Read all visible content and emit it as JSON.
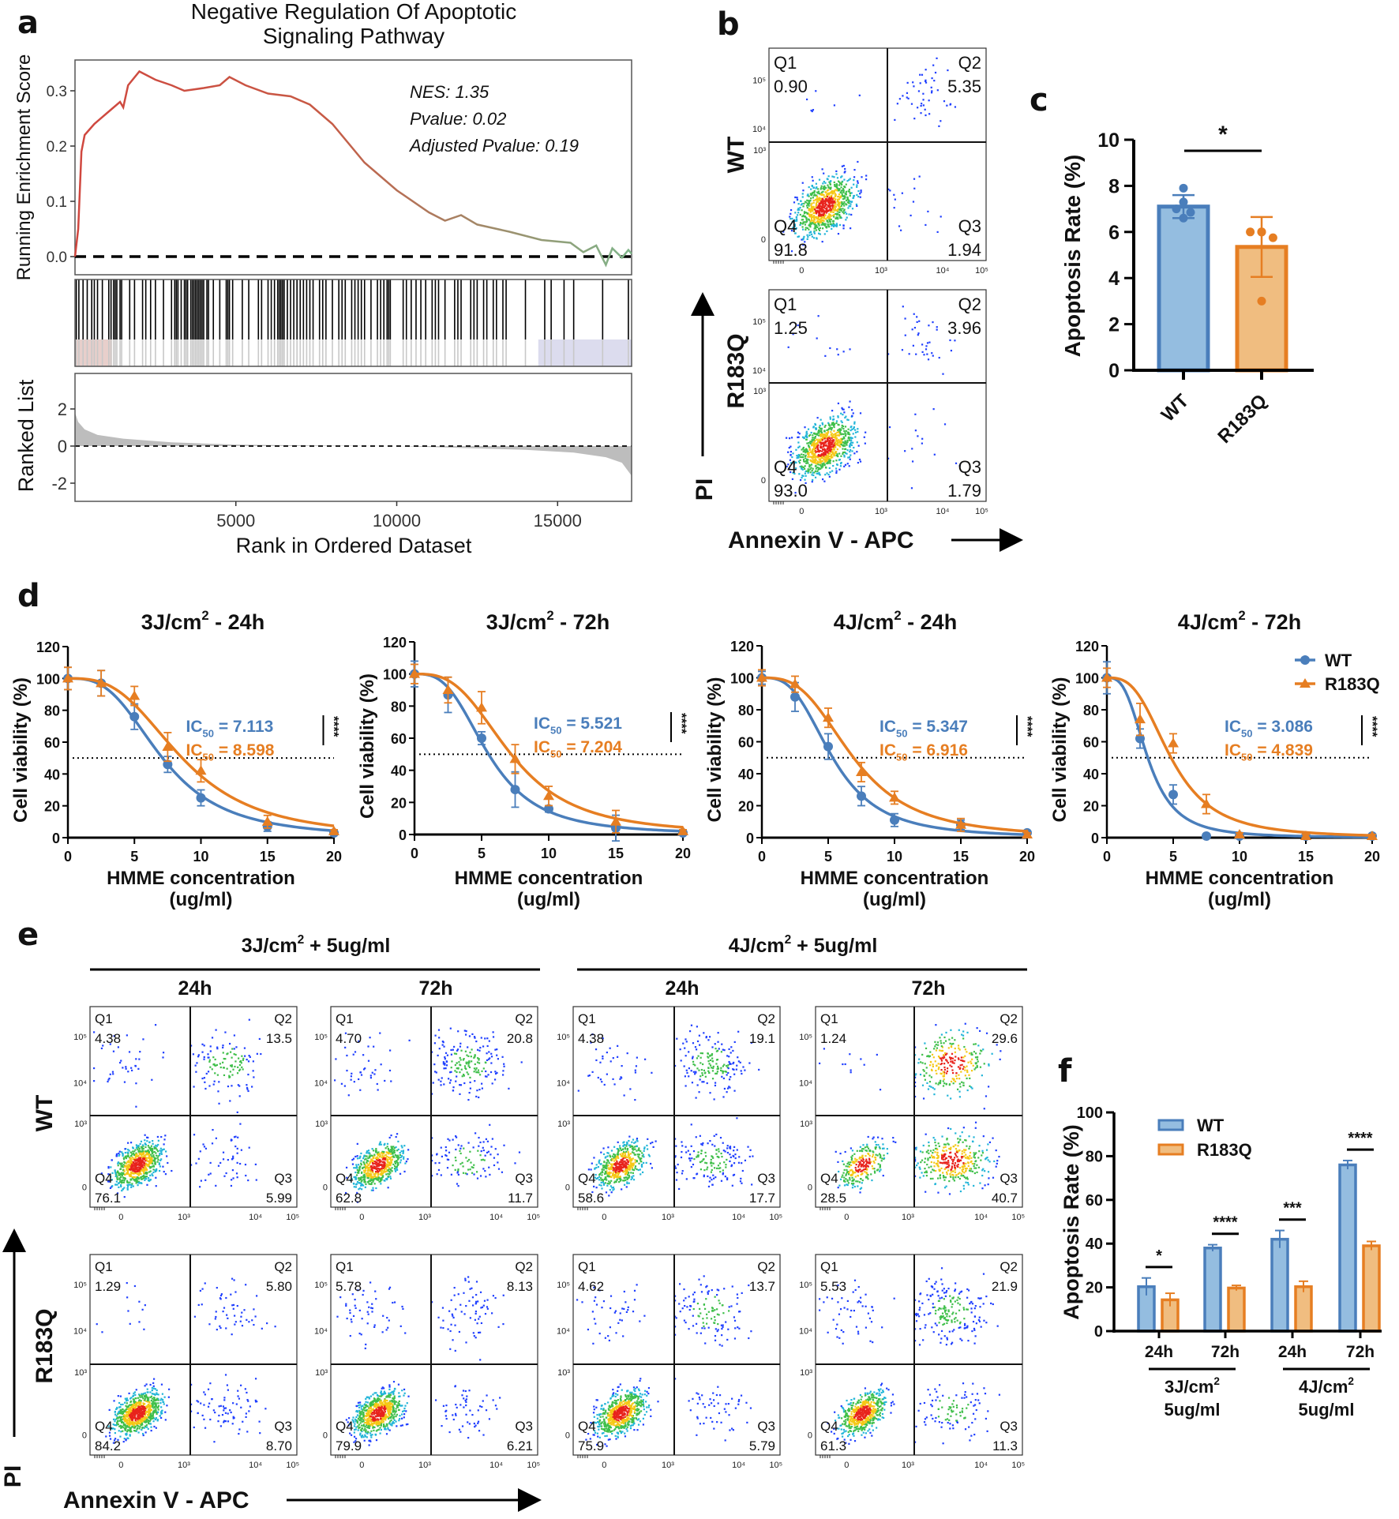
{
  "panel_labels": {
    "a": "a",
    "b": "b",
    "c": "c",
    "d": "d",
    "e": "e",
    "f": "f"
  },
  "colors": {
    "wt": "#4a7ebb",
    "r183q": "#e67e22",
    "wt_fill": "#94bde0",
    "r183q_fill": "#f0bd80",
    "gsea_start": "#d0473f",
    "gsea_end": "#7fb58a"
  },
  "chart_data": [
    {
      "id": "a",
      "type": "line",
      "title_lines": [
        "Negative Regulation Of Apoptotic",
        "Signaling Pathway"
      ],
      "annotations": [
        "NES: 1.35",
        "Pvalue: 0.02",
        "Adjusted Pvalue: 0.19"
      ],
      "ylabel": "Running Enrichment Score",
      "yticks": [
        "0.0",
        "0.1",
        "0.2",
        "0.3"
      ],
      "ylim": [
        -0.03,
        0.35
      ],
      "xlabel": "Rank in Ordered Dataset",
      "xticks": [
        "5000",
        "10000",
        "15000"
      ],
      "xlim": [
        0,
        17300
      ],
      "running_score": [
        [
          0,
          0
        ],
        [
          100,
          0.05
        ],
        [
          200,
          0.19
        ],
        [
          300,
          0.22
        ],
        [
          600,
          0.24
        ],
        [
          1000,
          0.26
        ],
        [
          1400,
          0.28
        ],
        [
          1500,
          0.27
        ],
        [
          1650,
          0.31
        ],
        [
          2000,
          0.335
        ],
        [
          2500,
          0.32
        ],
        [
          3000,
          0.31
        ],
        [
          3400,
          0.3
        ],
        [
          4000,
          0.305
        ],
        [
          4500,
          0.31
        ],
        [
          4800,
          0.325
        ],
        [
          5300,
          0.31
        ],
        [
          6000,
          0.295
        ],
        [
          6700,
          0.29
        ],
        [
          7300,
          0.275
        ],
        [
          8000,
          0.24
        ],
        [
          9000,
          0.17
        ],
        [
          10000,
          0.12
        ],
        [
          11000,
          0.08
        ],
        [
          11500,
          0.065
        ],
        [
          12000,
          0.075
        ],
        [
          12500,
          0.058
        ],
        [
          13500,
          0.045
        ],
        [
          14500,
          0.03
        ],
        [
          15400,
          0.025
        ],
        [
          15800,
          0.008
        ],
        [
          16200,
          0.02
        ],
        [
          16500,
          -0.015
        ],
        [
          16700,
          0.015
        ],
        [
          17000,
          -0.002
        ],
        [
          17200,
          0.012
        ],
        [
          17300,
          0.005
        ]
      ],
      "hits": [
        40,
        120,
        250,
        380,
        520,
        600,
        700,
        850,
        1050,
        1120,
        1200,
        1250,
        1300,
        1400,
        1450,
        1700,
        1850,
        2100,
        2200,
        2350,
        2500,
        2750,
        3000,
        3100,
        3150,
        3200,
        3300,
        3400,
        3450,
        3500,
        3600,
        3650,
        3700,
        3750,
        3800,
        3850,
        3900,
        3950,
        4000,
        4100,
        4150,
        4300,
        4500,
        4700,
        4750,
        4800,
        4900,
        5200,
        5400,
        5700,
        5800,
        6000,
        6100,
        6200,
        6300,
        6350,
        6400,
        6450,
        6500,
        6600,
        6700,
        6800,
        6900,
        7000,
        7100,
        7200,
        7300,
        7400,
        7600,
        7700,
        7800,
        8000,
        8200,
        8300,
        8400,
        8600,
        8700,
        8800,
        8900,
        9000,
        9200,
        9400,
        9500,
        9600,
        9700,
        9750,
        9800,
        10200,
        10300,
        10450,
        10600,
        10750,
        10900,
        11100,
        11200,
        11300,
        11500,
        11800,
        11900,
        12000,
        12300,
        12400,
        12500,
        12700,
        12800,
        13000,
        13100,
        13300,
        13400,
        14000,
        14600,
        14800,
        15200,
        15500,
        16400,
        17200
      ],
      "ranked_list": {
        "ylabel": "Ranked List",
        "yticks": [
          "2",
          "0",
          "-2"
        ],
        "ylim": [
          -3,
          3.6
        ],
        "values": [
          [
            0,
            1.8
          ],
          [
            100,
            1.3
          ],
          [
            300,
            0.9
          ],
          [
            700,
            0.6
          ],
          [
            1500,
            0.4
          ],
          [
            3000,
            0.2
          ],
          [
            5000,
            0.08
          ],
          [
            8000,
            0.02
          ],
          [
            10000,
            0
          ],
          [
            12000,
            -0.1
          ],
          [
            14000,
            -0.2
          ],
          [
            15500,
            -0.35
          ],
          [
            16500,
            -0.6
          ],
          [
            17000,
            -0.9
          ],
          [
            17300,
            -1.6
          ]
        ]
      }
    },
    {
      "id": "b",
      "type": "scatter",
      "xlabel": "Annexin V - APC",
      "ylabel": "PI",
      "axis_ticks": [
        "0",
        "10³",
        "10⁴",
        "10⁵"
      ],
      "quadrant_names": [
        "Q1",
        "Q2",
        "Q3",
        "Q4"
      ],
      "plots": [
        {
          "row": "WT",
          "Q1": "0.90",
          "Q2": "5.35",
          "Q3": "1.94",
          "Q4": "91.8"
        },
        {
          "row": "R183Q",
          "Q1": "1.25",
          "Q2": "3.96",
          "Q3": "1.79",
          "Q4": "93.0"
        }
      ]
    },
    {
      "id": "c",
      "type": "bar",
      "categories": [
        "WT",
        "R183Q"
      ],
      "values": [
        7.1,
        5.35
      ],
      "errors": [
        0.5,
        1.3
      ],
      "points": [
        [
          7.9,
          7.3,
          7.0,
          6.85,
          6.6
        ],
        [
          6.0,
          6.0,
          6.0,
          5.75,
          3.0
        ]
      ],
      "ylabel": "Apoptosis Rate (%)",
      "yticks": [
        "0",
        "2",
        "4",
        "6",
        "8",
        "10"
      ],
      "ylim": [
        0,
        10
      ],
      "significance": "*"
    },
    {
      "id": "d",
      "type": "line",
      "ylabel": "Cell viability (%)",
      "xlabel": "HMME concentration",
      "xlabel_unit": "(ug/ml)",
      "xticks": [
        "0",
        "5",
        "10",
        "15",
        "20"
      ],
      "yticks": [
        "0",
        "20",
        "40",
        "60",
        "80",
        "100",
        "120"
      ],
      "xlim": [
        0,
        20
      ],
      "ylim": [
        0,
        120
      ],
      "legend": [
        "WT",
        "R183Q"
      ],
      "reference_line": 50,
      "x": [
        0,
        2.5,
        5,
        7.5,
        10,
        15,
        20
      ],
      "panels": [
        {
          "title": "3J/cm",
          "title_sup": "2",
          "title_post": " - 24h",
          "significance": "****",
          "series": [
            {
              "name": "WT",
              "ic50": 7.113,
              "ic50_label": " = 7.113",
              "values": [
                100,
                97,
                76,
                46,
                25,
                7,
                3
              ],
              "errors": [
                7,
                8,
                8,
                5,
                5,
                3,
                1
              ]
            },
            {
              "name": "R183Q",
              "ic50": 8.598,
              "ic50_label": " = 8.598",
              "values": [
                100,
                97,
                89,
                57,
                42,
                10,
                4
              ],
              "errors": [
                7,
                8,
                6,
                9,
                7,
                4,
                1
              ]
            }
          ]
        },
        {
          "title": "3J/cm",
          "title_sup": "2",
          "title_post": " - 72h",
          "significance": "****",
          "series": [
            {
              "name": "WT",
              "ic50": 5.521,
              "ic50_label": " = 5.521",
              "values": [
                100,
                87,
                60,
                28,
                16,
                4,
                1
              ],
              "errors": [
                8,
                11,
                4,
                11,
                2,
                8,
                1
              ]
            },
            {
              "name": "R183Q",
              "ic50": 7.204,
              "ic50_label": " = 7.204",
              "values": [
                100,
                90,
                79,
                47,
                24,
                8,
                2
              ],
              "errors": [
                6,
                8,
                10,
                9,
                6,
                7,
                1
              ]
            }
          ]
        },
        {
          "title": "4J/cm",
          "title_sup": "2",
          "title_post": " - 24h",
          "significance": "****",
          "series": [
            {
              "name": "WT",
              "ic50": 5.347,
              "ic50_label": " = 5.347",
              "values": [
                100,
                88,
                57,
                26,
                11,
                8,
                3
              ],
              "errors": [
                4,
                9,
                8,
                6,
                4,
                3,
                1
              ]
            },
            {
              "name": "R183Q",
              "ic50": 6.916,
              "ic50_label": " = 6.916",
              "values": [
                100,
                96,
                75,
                41,
                25,
                8,
                2
              ],
              "errors": [
                5,
                5,
                6,
                6,
                4,
                4,
                1
              ]
            }
          ]
        },
        {
          "title": "4J/cm",
          "title_sup": "2",
          "title_post": " - 72h",
          "significance": "****",
          "series": [
            {
              "name": "WT",
              "ic50": 3.086,
              "ic50_label": " = 3.086",
              "values": [
                100,
                62,
                27,
                1,
                1,
                1,
                1
              ],
              "errors": [
                10,
                6,
                6,
                1,
                1,
                1,
                1
              ]
            },
            {
              "name": "R183Q",
              "ic50": 4.839,
              "ic50_label": " = 4.839",
              "values": [
                100,
                74,
                59,
                21,
                2,
                1,
                1
              ],
              "errors": [
                6,
                10,
                6,
                6,
                1,
                1,
                1
              ]
            }
          ]
        }
      ]
    },
    {
      "id": "e",
      "type": "scatter",
      "xlabel": "Annexin V - APC",
      "ylabel": "PI",
      "axis_ticks": [
        "0",
        "10³",
        "10⁴",
        "10⁵"
      ],
      "quadrant_names": [
        "Q1",
        "Q2",
        "Q3",
        "Q4"
      ],
      "groups": [
        {
          "pre": "3J/cm",
          "sup": "2",
          "post": " + 5ug/ml",
          "columns": [
            "24h",
            "72h"
          ]
        },
        {
          "pre": "4J/cm",
          "sup": "2",
          "post": " + 5ug/ml",
          "columns": [
            "24h",
            "72h"
          ]
        }
      ],
      "rows": [
        {
          "name": "WT",
          "plots": [
            {
              "Q1": "4.38",
              "Q2": "13.5",
              "Q3": "5.99",
              "Q4": "76.1"
            },
            {
              "Q1": "4.70",
              "Q2": "20.8",
              "Q3": "11.7",
              "Q4": "62.8"
            },
            {
              "Q1": "4.38",
              "Q2": "19.1",
              "Q3": "17.7",
              "Q4": "58.6"
            },
            {
              "Q1": "1.24",
              "Q2": "29.6",
              "Q3": "40.7",
              "Q4": "28.5"
            }
          ]
        },
        {
          "name": "R183Q",
          "plots": [
            {
              "Q1": "1.29",
              "Q2": "5.80",
              "Q3": "8.70",
              "Q4": "84.2"
            },
            {
              "Q1": "5.78",
              "Q2": "8.13",
              "Q3": "6.21",
              "Q4": "79.9"
            },
            {
              "Q1": "4.62",
              "Q2": "13.7",
              "Q3": "5.79",
              "Q4": "75.9"
            },
            {
              "Q1": "5.53",
              "Q2": "21.9",
              "Q3": "11.3",
              "Q4": "61.3"
            }
          ]
        }
      ]
    },
    {
      "id": "f",
      "type": "bar",
      "categories": [
        "24h",
        "72h",
        "24h",
        "72h"
      ],
      "category_groups": [
        {
          "line1": "3J/cm",
          "sup": "2",
          "line2": "5ug/ml"
        },
        {
          "line1": "4J/cm",
          "sup": "2",
          "line2": "5ug/ml"
        }
      ],
      "series": [
        {
          "name": "WT",
          "values": [
            20.3,
            38,
            42,
            76
          ],
          "errors": [
            4,
            1.5,
            4,
            2
          ]
        },
        {
          "name": "R183Q",
          "values": [
            14.3,
            19.7,
            20.3,
            39
          ],
          "errors": [
            3,
            1.2,
            2.5,
            2
          ]
        }
      ],
      "significance": [
        "*",
        "****",
        "***",
        "****"
      ],
      "ylabel": "Apoptosis Rate (%)",
      "yticks": [
        "0",
        "20",
        "40",
        "60",
        "80",
        "100"
      ],
      "ylim": [
        0,
        100
      ],
      "legend": "top-left"
    }
  ]
}
